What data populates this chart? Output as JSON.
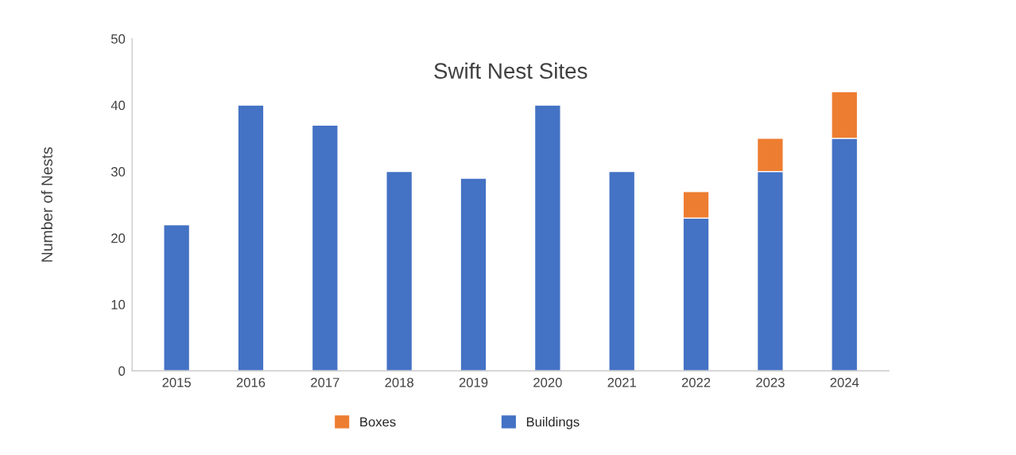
{
  "chart_data": {
    "type": "bar",
    "title": "Swift Nest Sites",
    "ylabel": "Number of Nests",
    "categories": [
      "2015",
      "2016",
      "2017",
      "2018",
      "2019",
      "2020",
      "2021",
      "2022",
      "2023",
      "2024"
    ],
    "stacked": true,
    "series": [
      {
        "name": "Buildings",
        "color": "#4472c4",
        "values": [
          22,
          40,
          37,
          30,
          29,
          40,
          30,
          23,
          30,
          35
        ]
      },
      {
        "name": "Boxes",
        "color": "#ed7d31",
        "values": [
          null,
          null,
          null,
          null,
          null,
          null,
          null,
          4,
          5,
          7
        ]
      }
    ],
    "ylim": [
      0,
      50
    ],
    "yticks": [
      0,
      10,
      20,
      30,
      40,
      50
    ],
    "grid": false,
    "legend": "bottom"
  }
}
